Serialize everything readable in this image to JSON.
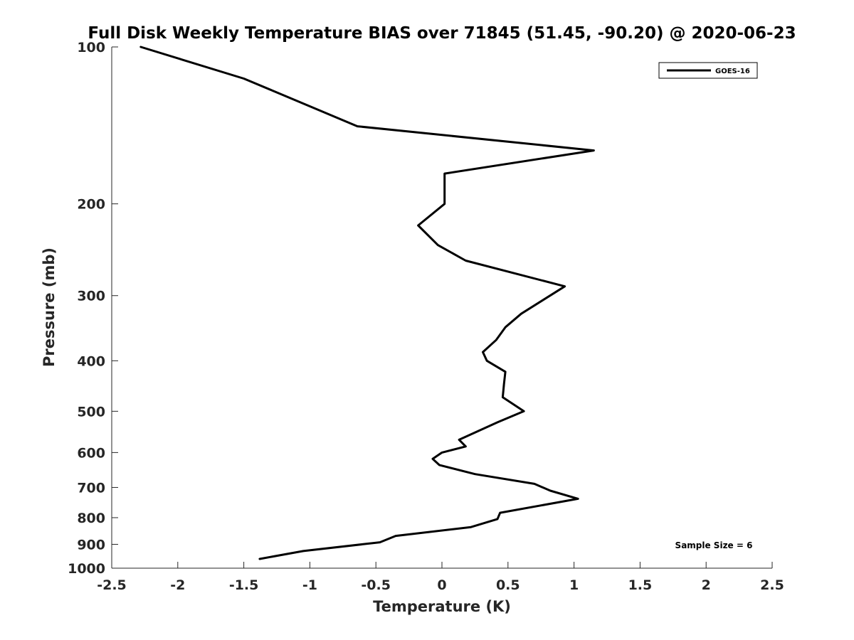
{
  "chart_data": {
    "type": "line",
    "title": "Full Disk Weekly Temperature BIAS over 71845 (51.45, -90.20) @ 2020-06-23",
    "xlabel": "Temperature (K)",
    "ylabel": "Pressure (mb)",
    "xlim": [
      -2.5,
      2.5
    ],
    "ylim": [
      100,
      1000
    ],
    "y_scale": "log",
    "y_reversed": true,
    "x_ticks": [
      -2.5,
      -2,
      -1.5,
      -1,
      -0.5,
      0,
      0.5,
      1,
      1.5,
      2,
      2.5
    ],
    "x_tick_labels": [
      "-2.5",
      "-2",
      "-1.5",
      "-1",
      "-0.5",
      "0",
      "0.5",
      "1",
      "1.5",
      "2",
      "2.5"
    ],
    "y_ticks": [
      100,
      200,
      300,
      400,
      500,
      600,
      700,
      800,
      900,
      1000
    ],
    "y_tick_labels": [
      "100",
      "200",
      "300",
      "400",
      "500",
      "600",
      "700",
      "800",
      "900",
      "1000"
    ],
    "grid": false,
    "legend_position": "top-right",
    "series": [
      {
        "name": "GOES-16",
        "color": "#000000",
        "x": [
          -2.28,
          -1.5,
          -1.0,
          -0.64,
          1.15,
          0.02,
          0.02,
          -0.18,
          -0.03,
          0.18,
          0.93,
          0.6,
          0.48,
          0.41,
          0.31,
          0.34,
          0.48,
          0.47,
          0.46,
          0.62,
          0.42,
          0.13,
          0.18,
          0.0,
          -0.07,
          -0.02,
          0.25,
          0.7,
          0.82,
          1.03,
          0.44,
          0.42,
          0.22,
          -0.35,
          -0.47,
          -1.05,
          -1.38
        ],
        "y": [
          100,
          115,
          130,
          142,
          158,
          175,
          200,
          220,
          240,
          257,
          288,
          325,
          345,
          365,
          385,
          400,
          420,
          443,
          470,
          500,
          525,
          567,
          584,
          600,
          617,
          634,
          660,
          689,
          710,
          736,
          783,
          805,
          834,
          867,
          892,
          927,
          960
        ]
      }
    ],
    "annotation": "Sample Size = 6"
  }
}
